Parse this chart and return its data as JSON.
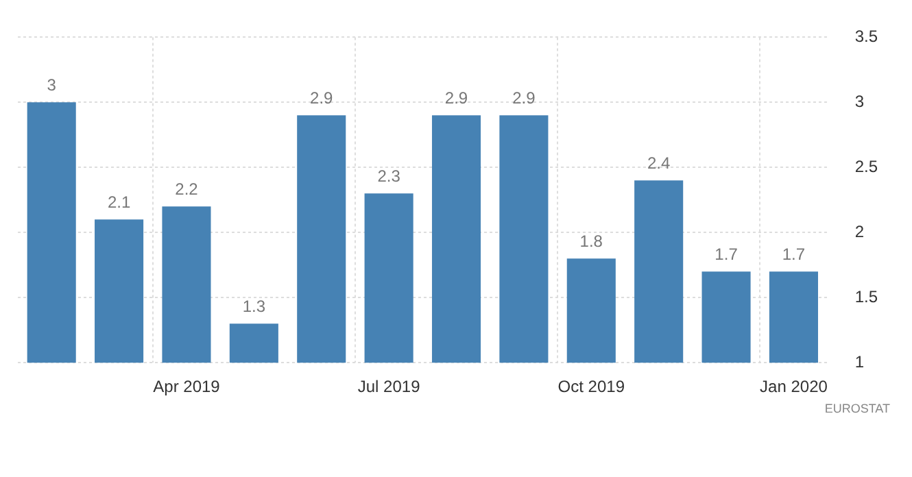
{
  "chart_data": {
    "type": "bar",
    "categories": [
      null,
      null,
      "Apr 2019",
      null,
      null,
      "Jul 2019",
      null,
      null,
      "Oct 2019",
      null,
      null,
      "Jan 2020"
    ],
    "values": [
      3,
      2.1,
      2.2,
      1.3,
      2.9,
      2.3,
      2.9,
      2.9,
      1.8,
      2.4,
      1.7,
      1.7
    ],
    "color": "#4682b4",
    "ylim": [
      1,
      3.5
    ],
    "yticks": [
      1,
      1.5,
      2,
      2.5,
      3,
      3.5
    ],
    "grid": true,
    "data_labels": true,
    "legend": false,
    "annotations": [
      "EUROSTAT"
    ]
  }
}
